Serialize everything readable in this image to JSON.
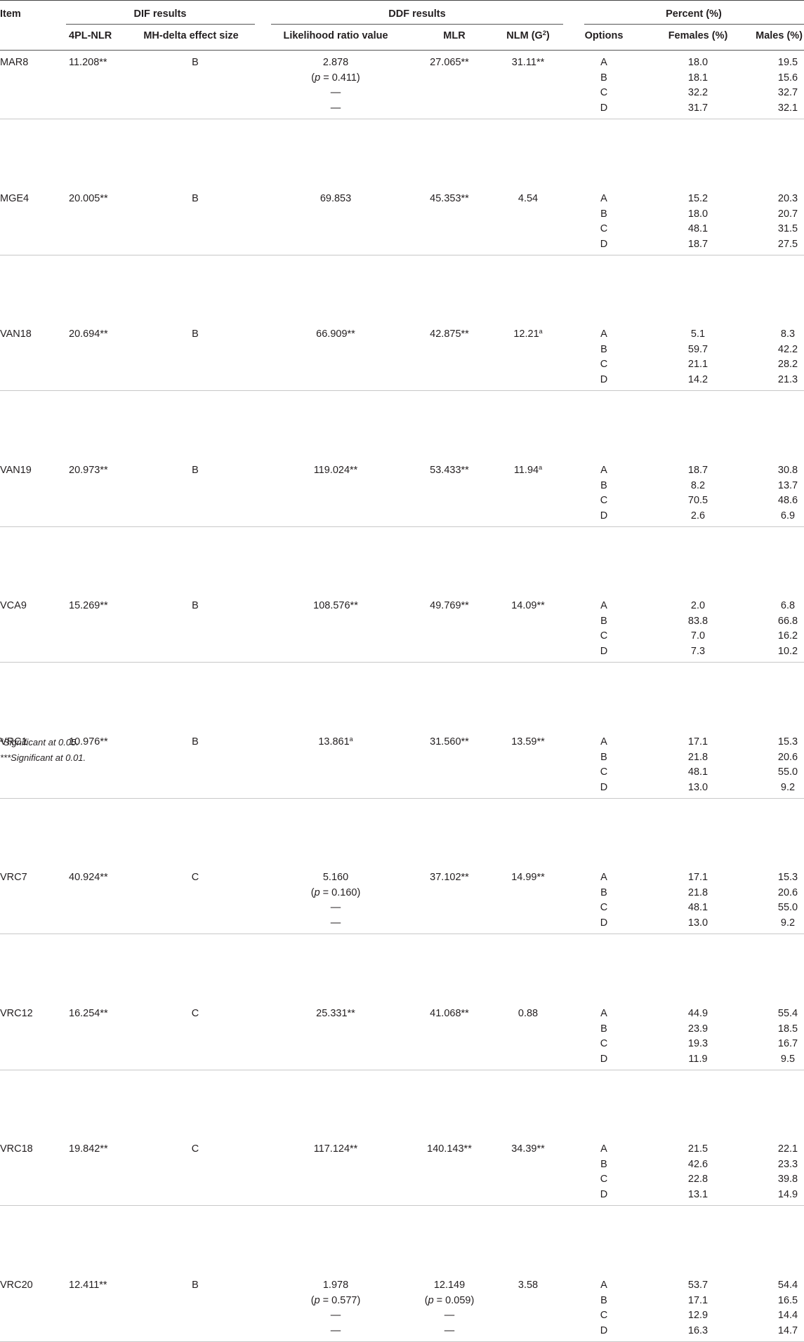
{
  "headers": {
    "item": "Item",
    "dif_group": "DIF results",
    "ddf_group": "DDF results",
    "percent_group": "Percent (%)",
    "nlr": "4PL-NLR",
    "mh": "MH-delta effect size",
    "lr": "Likelihood ratio value",
    "mlr": "MLR",
    "nlm": "NLM (G",
    "nlm_sup": "2",
    "nlm_close": ")",
    "options": "Options",
    "females": "Females (%)",
    "males": "Males (%)"
  },
  "rows": [
    {
      "item": "MAR8",
      "nlr": "11.208**",
      "mh": "B",
      "lr": [
        "2.878",
        "(p = 0.411)",
        "—",
        "—"
      ],
      "mlr": [
        "27.065**"
      ],
      "nlm": "31.11**",
      "nlm_sup": "",
      "options": [
        "A",
        "B",
        "C",
        "D"
      ],
      "females": [
        "18.0",
        "18.1",
        "32.2",
        "31.7"
      ],
      "males": [
        "19.5",
        "15.6",
        "32.7",
        "32.1"
      ]
    },
    {
      "item": "MGE4",
      "nlr": "20.005**",
      "mh": "B",
      "lr": [
        "69.853"
      ],
      "mlr": [
        "45.353**"
      ],
      "nlm": "4.54",
      "nlm_sup": "",
      "options": [
        "A",
        "B",
        "C",
        "D"
      ],
      "females": [
        "15.2",
        "18.0",
        "48.1",
        "18.7"
      ],
      "males": [
        "20.3",
        "20.7",
        "31.5",
        "27.5"
      ]
    },
    {
      "item": "VAN18",
      "nlr": "20.694**",
      "mh": "B",
      "lr": [
        "66.909**"
      ],
      "mlr": [
        "42.875**"
      ],
      "nlm": "12.21",
      "nlm_sup": "a",
      "options": [
        "A",
        "B",
        "C",
        "D"
      ],
      "females": [
        "5.1",
        "59.7",
        "21.1",
        "14.2"
      ],
      "males": [
        "8.3",
        "42.2",
        "28.2",
        "21.3"
      ]
    },
    {
      "item": "VAN19",
      "nlr": "20.973**",
      "mh": "B",
      "lr": [
        "119.024**"
      ],
      "mlr": [
        "53.433**"
      ],
      "nlm": "11.94",
      "nlm_sup": "a",
      "options": [
        "A",
        "B",
        "C",
        "D"
      ],
      "females": [
        "18.7",
        "8.2",
        "70.5",
        "2.6"
      ],
      "males": [
        "30.8",
        "13.7",
        "48.6",
        "6.9"
      ]
    },
    {
      "item": "VCA9",
      "nlr": "15.269**",
      "mh": "B",
      "lr": [
        "108.576**"
      ],
      "mlr": [
        "49.769**"
      ],
      "nlm": "14.09**",
      "nlm_sup": "",
      "options": [
        "A",
        "B",
        "C",
        "D"
      ],
      "females": [
        "2.0",
        "83.8",
        "7.0",
        "7.3"
      ],
      "males": [
        "6.8",
        "66.8",
        "16.2",
        "10.2"
      ]
    },
    {
      "item": "VRC1",
      "nlr": "10.976**",
      "mh": "B",
      "lr": [
        "13.861"
      ],
      "lr_sup": "a",
      "mlr": [
        "31.560**"
      ],
      "nlm": "13.59**",
      "nlm_sup": "",
      "options": [
        "A",
        "B",
        "C",
        "D"
      ],
      "females": [
        "17.1",
        "21.8",
        "48.1",
        "13.0"
      ],
      "males": [
        "15.3",
        "20.6",
        "55.0",
        "9.2"
      ]
    },
    {
      "item": "VRC7",
      "nlr": "40.924**",
      "mh": "C",
      "lr": [
        "5.160",
        "(p = 0.160)",
        "—",
        "—"
      ],
      "mlr": [
        "37.102**"
      ],
      "nlm": "14.99**",
      "nlm_sup": "",
      "options": [
        "A",
        "B",
        "C",
        "D"
      ],
      "females": [
        "17.1",
        "21.8",
        "48.1",
        "13.0"
      ],
      "males": [
        "15.3",
        "20.6",
        "55.0",
        "9.2"
      ]
    },
    {
      "item": "VRC12",
      "nlr": "16.254**",
      "mh": "C",
      "lr": [
        "25.331**"
      ],
      "mlr": [
        "41.068**"
      ],
      "nlm": "0.88",
      "nlm_sup": "",
      "options": [
        "A",
        "B",
        "C",
        "D"
      ],
      "females": [
        "44.9",
        "23.9",
        "19.3",
        "11.9"
      ],
      "males": [
        "55.4",
        "18.5",
        "16.7",
        "9.5"
      ]
    },
    {
      "item": "VRC18",
      "nlr": "19.842**",
      "mh": "C",
      "lr": [
        "117.124**"
      ],
      "mlr": [
        "140.143**"
      ],
      "nlm": "34.39**",
      "nlm_sup": "",
      "options": [
        "A",
        "B",
        "C",
        "D"
      ],
      "females": [
        "21.5",
        "42.6",
        "22.8",
        "13.1"
      ],
      "males": [
        "22.1",
        "23.3",
        "39.8",
        "14.9"
      ]
    },
    {
      "item": "VRC20",
      "nlr": "12.411**",
      "mh": "B",
      "lr": [
        "1.978",
        "(p = 0.577)",
        "—",
        "—"
      ],
      "mlr": [
        "12.149",
        "(p = 0.059)",
        "—",
        "—"
      ],
      "nlm": "3.58",
      "nlm_sup": "",
      "options": [
        "A",
        "B",
        "C",
        "D"
      ],
      "females": [
        "53.7",
        "17.1",
        "12.9",
        "16.3"
      ],
      "males": [
        "54.4",
        "16.5",
        "14.4",
        "14.7"
      ]
    }
  ],
  "footnotes": {
    "a_sup": "a",
    "a_text": "Significant at 0.05.",
    "b_text": "***Significant at 0.01."
  }
}
